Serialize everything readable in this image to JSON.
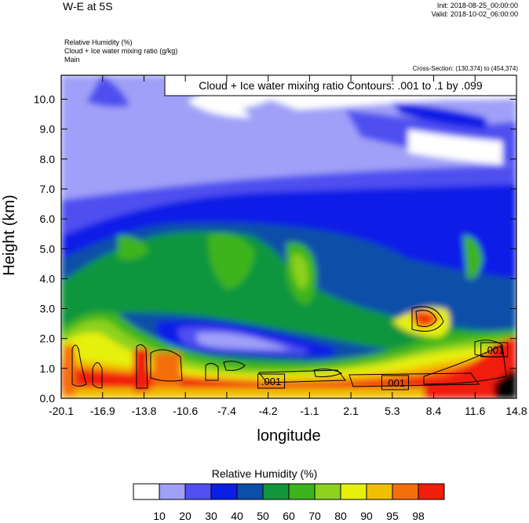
{
  "header": {
    "title": "W-E at 5S",
    "init": "Init: 2018-08-25_00:00:00",
    "valid": "Valid: 2018-10-02_06:00:00",
    "field1": "Relative Humidity   (%)",
    "field2": "Cloud + Ice water mixing ratio   (g/kg)",
    "field3": "Main",
    "cross_section": "Cross-Section: (130,374) to (454,374)"
  },
  "chart_data": {
    "type": "heatmap",
    "title": "W-E at 5S",
    "xlabel": "longitude",
    "ylabel": "Height (km)",
    "xlim": [
      -20.1,
      14.8
    ],
    "ylim": [
      0,
      10.8
    ],
    "x_ticks": [
      "-20.1",
      "-16.9",
      "-13.8",
      "-10.6",
      "-7.4",
      "-4.2",
      "-1.1",
      "2.1",
      "5.3",
      "8.4",
      "11.6",
      "14.8"
    ],
    "y_ticks": [
      "0.0",
      "1.0",
      "2.0",
      "3.0",
      "4.0",
      "5.0",
      "6.0",
      "7.0",
      "8.0",
      "9.0",
      "10.0"
    ],
    "contour_note": "Cloud + Ice water mixing ratio Contours: .001 to .1 by .099",
    "contour_labels": [
      {
        "text": ".001",
        "lon": -4.0,
        "height": 0.55
      },
      {
        "text": ".001",
        "lon": 5.5,
        "height": 0.5
      },
      {
        "text": ".001",
        "lon": 13.1,
        "height": 1.6
      }
    ],
    "colorbar": {
      "title": "Relative Humidity  (%)",
      "labels": [
        "10",
        "20",
        "30",
        "40",
        "50",
        "60",
        "70",
        "80",
        "90",
        "95",
        "98"
      ],
      "colors": [
        "#ffffff",
        "#a0a0f8",
        "#5050f0",
        "#0a1ee6",
        "#0a4fa8",
        "#10963c",
        "#3cb41e",
        "#8cd21e",
        "#e6f00a",
        "#f0c000",
        "#f56e0a",
        "#f01e0a"
      ]
    }
  }
}
